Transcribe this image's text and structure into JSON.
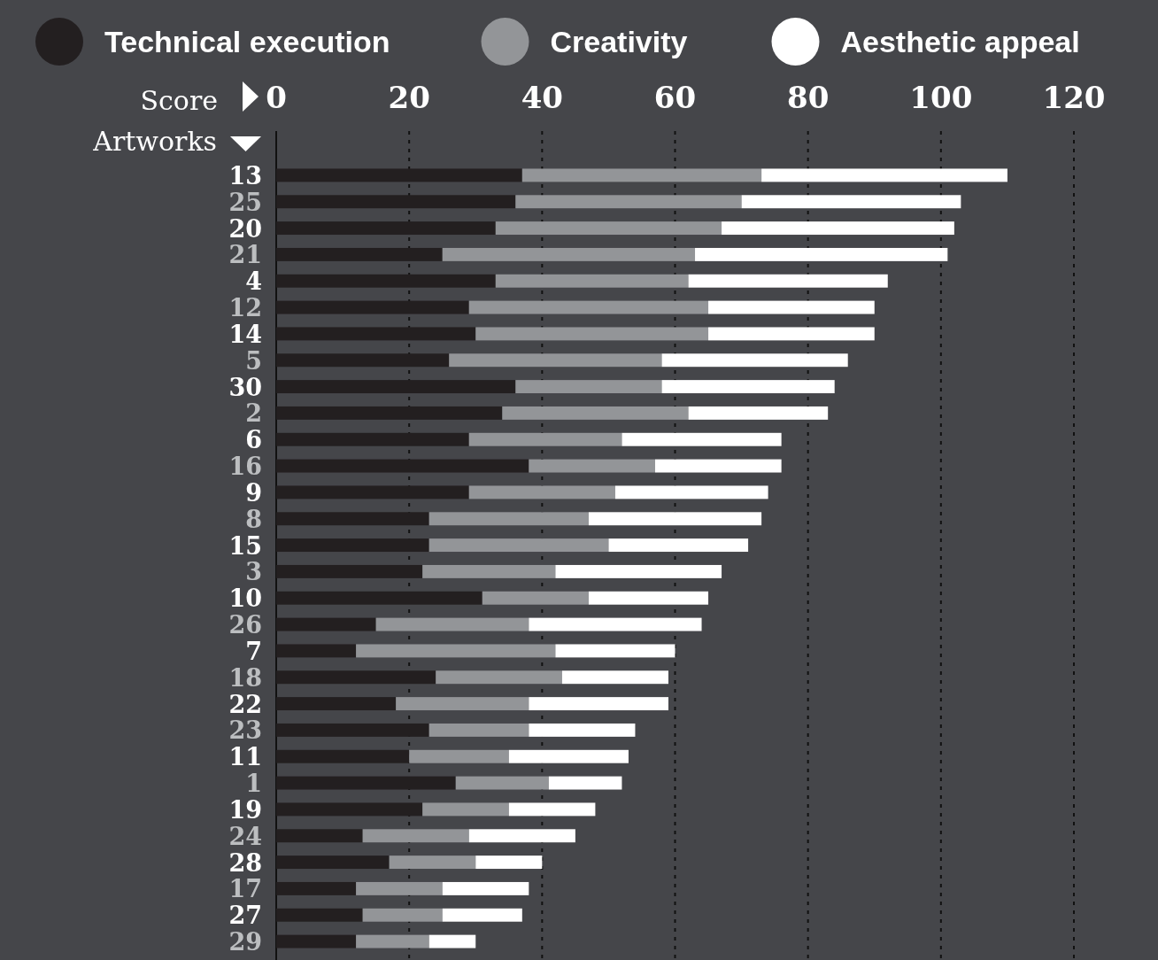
{
  "chart_data": {
    "type": "bar",
    "orientation": "horizontal",
    "stacked": true,
    "xlabel": "Score",
    "ylabel": "Artworks",
    "categories": [
      "13",
      "25",
      "20",
      "21",
      "4",
      "12",
      "14",
      "5",
      "30",
      "2",
      "6",
      "16",
      "9",
      "8",
      "15",
      "3",
      "10",
      "26",
      "7",
      "18",
      "22",
      "23",
      "11",
      "1",
      "19",
      "24",
      "28",
      "17",
      "27",
      "29"
    ],
    "series": [
      {
        "name": "Technical execution",
        "color": "#231f20",
        "values": [
          37,
          36,
          33,
          25,
          33,
          29,
          30,
          26,
          36,
          34,
          29,
          38,
          29,
          23,
          23,
          22,
          31,
          15,
          12,
          24,
          18,
          23,
          20,
          27,
          22,
          13,
          17,
          12,
          13,
          12
        ]
      },
      {
        "name": "Creativity",
        "color": "#939598",
        "values": [
          36,
          34,
          34,
          38,
          29,
          36,
          35,
          32,
          22,
          28,
          23,
          19,
          22,
          24,
          27,
          20,
          16,
          23,
          30,
          19,
          20,
          15,
          15,
          14,
          13,
          16,
          13,
          13,
          12,
          11
        ]
      },
      {
        "name": "Aesthetic appeal",
        "color": "#ffffff",
        "values": [
          37,
          33,
          35,
          38,
          30,
          25,
          25,
          28,
          26,
          21,
          24,
          19,
          23,
          26,
          21,
          25,
          18,
          26,
          18,
          16,
          21,
          16,
          18,
          11,
          13,
          16,
          10,
          13,
          12,
          7
        ]
      }
    ],
    "xlim": [
      0,
      120
    ],
    "xticks": [
      0,
      20,
      40,
      60,
      80,
      100,
      120
    ],
    "grid": "x",
    "legend": "top"
  }
}
